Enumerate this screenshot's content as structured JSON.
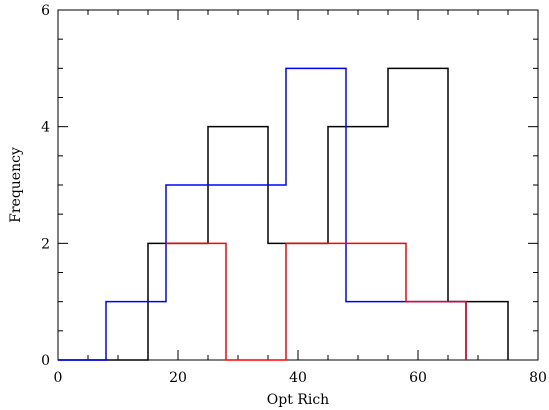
{
  "chart_data": {
    "type": "histogram",
    "xlabel": "Opt Rich",
    "ylabel": "Frequency",
    "xlim": [
      0,
      80
    ],
    "ylim": [
      0,
      6
    ],
    "xticks": [
      0,
      20,
      40,
      60,
      80
    ],
    "yticks": [
      0,
      2,
      4,
      6
    ],
    "grid": false,
    "series": [
      {
        "color": "#000000",
        "bins": [
          {
            "x0": 0,
            "x1": 15,
            "count": 0
          },
          {
            "x0": 15,
            "x1": 25,
            "count": 2
          },
          {
            "x0": 25,
            "x1": 35,
            "count": 4
          },
          {
            "x0": 35,
            "x1": 45,
            "count": 2
          },
          {
            "x0": 45,
            "x1": 55,
            "count": 4
          },
          {
            "x0": 55,
            "x1": 65,
            "count": 5
          },
          {
            "x0": 65,
            "x1": 75,
            "count": 1
          }
        ]
      },
      {
        "color": "#0000ff",
        "bins": [
          {
            "x0": 0,
            "x1": 8,
            "count": 0
          },
          {
            "x0": 8,
            "x1": 18,
            "count": 1
          },
          {
            "x0": 18,
            "x1": 38,
            "count": 3
          },
          {
            "x0": 38,
            "x1": 48,
            "count": 5
          },
          {
            "x0": 48,
            "x1": 68,
            "count": 1
          }
        ]
      },
      {
        "color": "#ff0000",
        "bins": [
          {
            "x0": 18,
            "x1": 28,
            "count": 2
          },
          {
            "x0": 28,
            "x1": 38,
            "count": 0
          },
          {
            "x0": 38,
            "x1": 58,
            "count": 2
          },
          {
            "x0": 58,
            "x1": 68,
            "count": 1
          }
        ]
      }
    ]
  }
}
